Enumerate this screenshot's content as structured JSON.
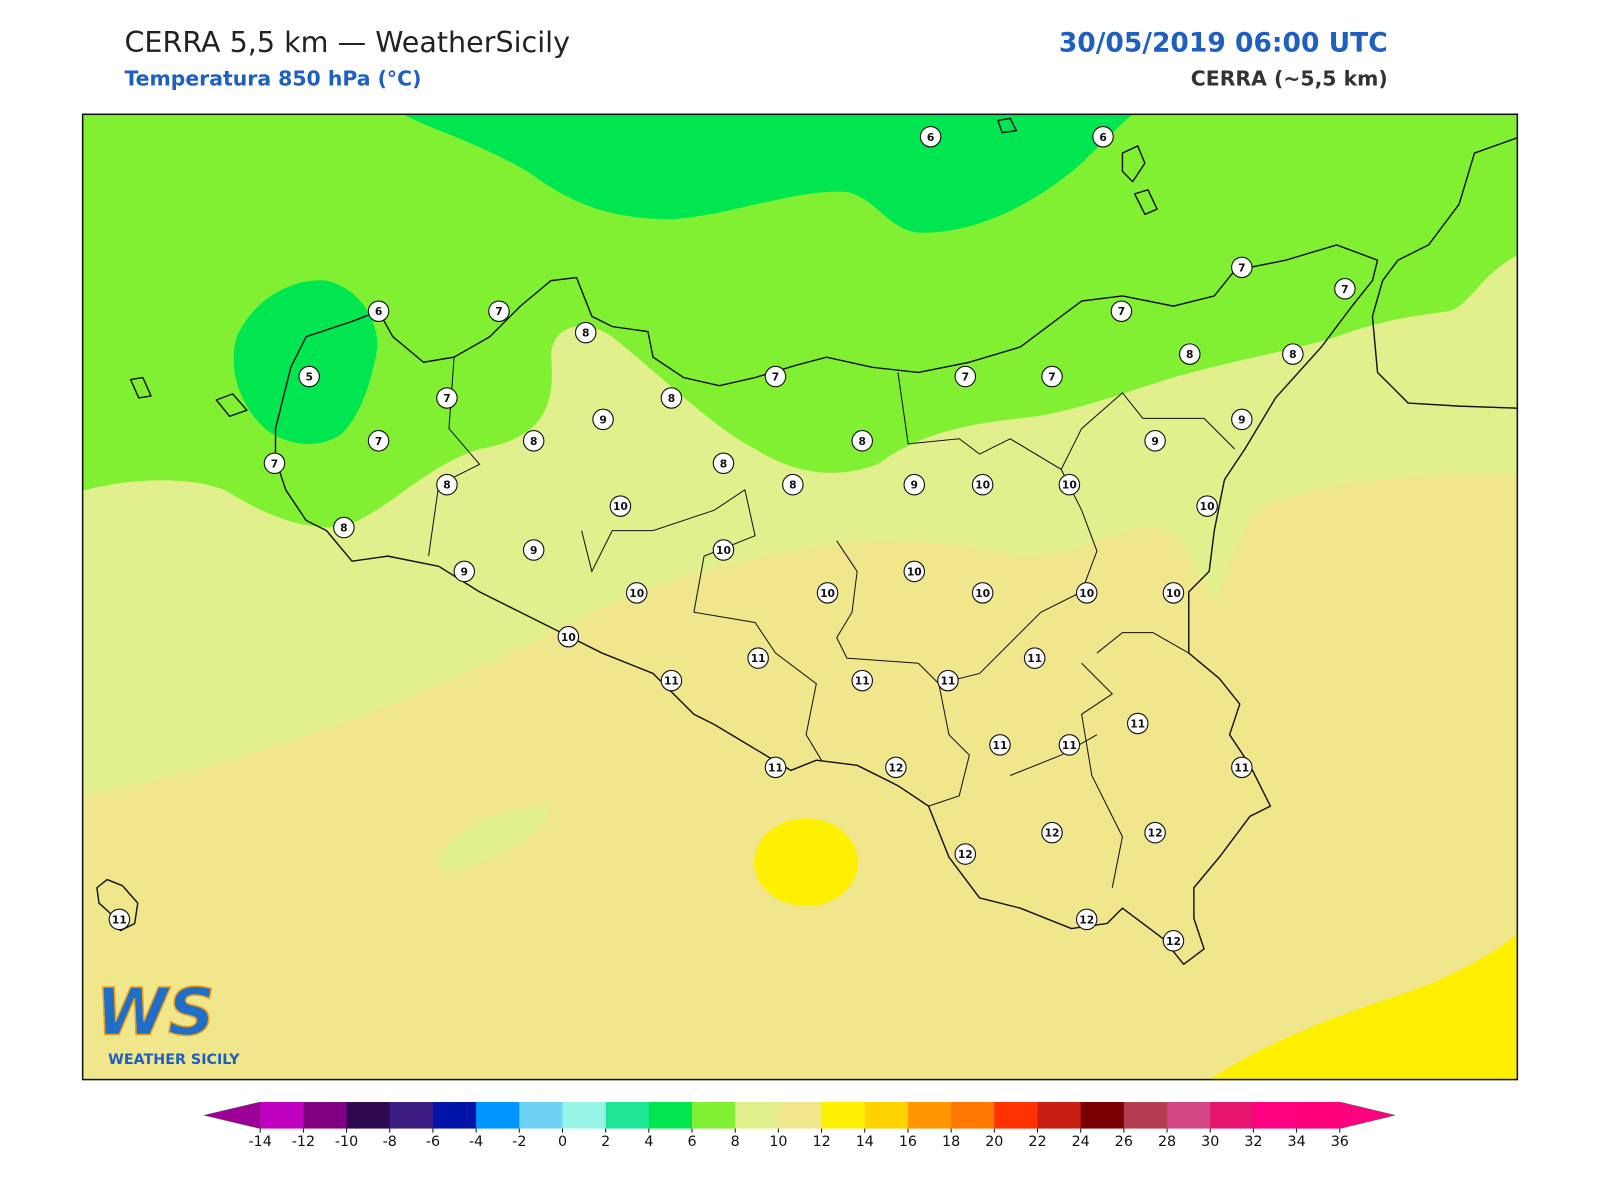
{
  "header": {
    "title": "CERRA 5,5 km — WeatherSicily",
    "subtitle": "Temperatura 850 hPa (°C)",
    "datetime": "30/05/2019 06:00 UTC",
    "model": "CERRA (~5,5 km)"
  },
  "logo": {
    "mark": "WS",
    "text": "WEATHER SICILY"
  },
  "station_values": [
    6,
    6,
    6,
    7,
    5,
    8,
    7,
    7,
    7,
    8,
    8,
    9,
    8,
    7,
    8,
    8,
    8,
    7,
    7,
    7,
    7,
    7,
    8,
    8,
    9,
    9,
    9,
    10,
    10,
    10,
    10,
    8,
    9,
    9,
    10,
    10,
    10,
    10,
    10,
    10,
    10,
    10,
    11,
    11,
    11,
    11,
    11,
    11,
    11,
    11,
    11,
    11,
    12,
    12,
    12,
    12,
    12,
    12,
    11
  ],
  "colorbar": {
    "ticks": [
      -14,
      -12,
      -10,
      -8,
      -6,
      -4,
      -2,
      0,
      2,
      4,
      6,
      8,
      10,
      12,
      14,
      16,
      18,
      20,
      22,
      24,
      26,
      28,
      30,
      32,
      34,
      36
    ],
    "colors": [
      "#c000c0",
      "#800080",
      "#2d0a50",
      "#3c1e82",
      "#0014aa",
      "#0096ff",
      "#6ed2f5",
      "#96f5e6",
      "#1ee696",
      "#00e650",
      "#82f032",
      "#e1f08c",
      "#f0e68c",
      "#fff000",
      "#ffd200",
      "#ff9600",
      "#ff7800",
      "#ff3200",
      "#c81e14",
      "#780000",
      "#b43c50",
      "#d24682",
      "#e6146e",
      "#ff0080",
      "#ff0078"
    ],
    "under_color": "#9c0096",
    "over_color": "#ff0080"
  }
}
